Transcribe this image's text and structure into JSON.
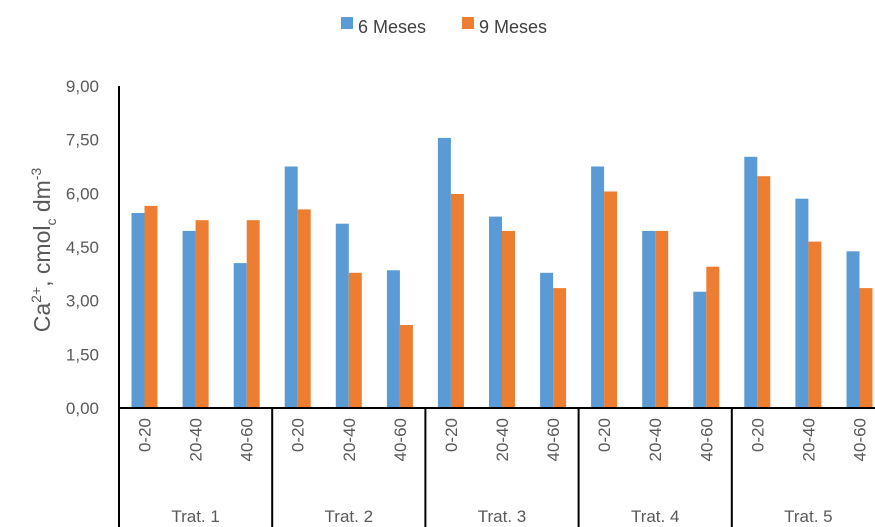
{
  "chart_data": {
    "type": "bar",
    "ylabel": {
      "base": "Ca",
      "ion": "2+",
      "mid": ", cmol",
      "sub": "c",
      "unit": " dm",
      "exp": "-3"
    },
    "ylim": [
      0,
      9
    ],
    "yticks": [
      "0,00",
      "1,50",
      "3,00",
      "4,50",
      "6,00",
      "7,50",
      "9,00"
    ],
    "grid": false,
    "legend_position": "top",
    "groups": [
      "Trat. 1",
      "Trat. 2",
      "Trat. 3",
      "Trat. 4",
      "Trat. 5"
    ],
    "depths": [
      "0-20",
      "20-40",
      "40-60"
    ],
    "series": [
      {
        "name": "6 Meses",
        "color": "#5B9BD5",
        "values": [
          5.45,
          4.95,
          4.05,
          6.75,
          5.15,
          3.85,
          7.55,
          5.35,
          3.78,
          6.75,
          4.95,
          3.25,
          7.02,
          5.85,
          4.38
        ]
      },
      {
        "name": "9 Meses",
        "color": "#ED7D31",
        "values": [
          5.65,
          5.25,
          5.25,
          5.55,
          3.78,
          2.32,
          5.98,
          4.95,
          3.35,
          6.05,
          4.95,
          3.95,
          6.48,
          4.65,
          3.35
        ]
      }
    ]
  }
}
